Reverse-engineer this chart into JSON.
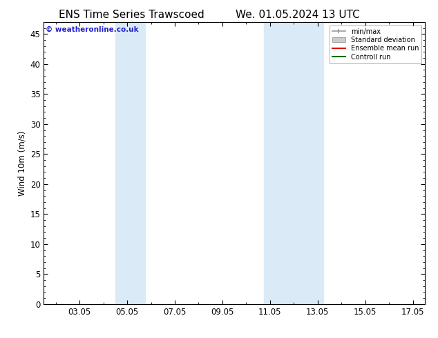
{
  "title_left": "ENS Time Series Trawscoed",
  "title_right": "We. 01.05.2024 13 UTC",
  "ylabel": "Wind 10m (m/s)",
  "watermark": "© weatheronline.co.uk",
  "xlim": [
    1.5,
    17.5
  ],
  "ylim": [
    0,
    47
  ],
  "yticks": [
    0,
    5,
    10,
    15,
    20,
    25,
    30,
    35,
    40,
    45
  ],
  "xtick_labels": [
    "03.05",
    "05.05",
    "07.05",
    "09.05",
    "11.05",
    "13.05",
    "15.05",
    "17.05"
  ],
  "xtick_positions": [
    3.0,
    5.0,
    7.0,
    9.0,
    11.0,
    13.0,
    15.0,
    17.0
  ],
  "shaded_bands": [
    {
      "x_start": 4.5,
      "x_end": 5.75,
      "color": "#daeaf7"
    },
    {
      "x_start": 10.75,
      "x_end": 13.25,
      "color": "#daeaf7"
    }
  ],
  "legend_entries": [
    {
      "label": "min/max",
      "color": "#999999",
      "type": "line_with_caps"
    },
    {
      "label": "Standard deviation",
      "color": "#cccccc",
      "type": "band"
    },
    {
      "label": "Ensemble mean run",
      "color": "#dd0000",
      "type": "line"
    },
    {
      "label": "Controll run",
      "color": "#006600",
      "type": "line"
    }
  ],
  "bg_color": "#ffffff",
  "plot_bg_color": "#ffffff",
  "title_fontsize": 11,
  "axis_fontsize": 8.5,
  "watermark_color": "#2222cc",
  "watermark_fontsize": 7.5
}
